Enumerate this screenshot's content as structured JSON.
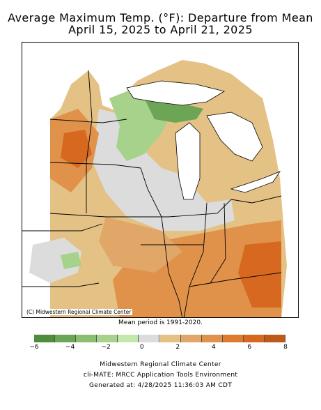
{
  "title_line1": "Average Maximum Temp. (°F): Departure from Mean",
  "title_line2": "April 15, 2025 to April 21, 2025",
  "map_credit": "(C) Midwestern Regional Climate Center",
  "mean_period": "Mean period is 1991-2020.",
  "legend": {
    "tick_labels": [
      "−6",
      "−4",
      "−2",
      "0",
      "2",
      "4",
      "6",
      "8"
    ],
    "colors": [
      "#4e8c3e",
      "#6da556",
      "#8cbe72",
      "#a6d28c",
      "#c4e7ac",
      "#dcdcdc",
      "#e4c184",
      "#e0a768",
      "#e0914a",
      "#e07a2e",
      "#d6691f",
      "#c05818"
    ]
  },
  "footer": {
    "line1": "Midwestern Regional Climate Center",
    "line2": "cli-MATE: MRCC Application Tools Environment",
    "line3": "Generated at: 4/28/2025 11:36:03 AM CDT"
  }
}
